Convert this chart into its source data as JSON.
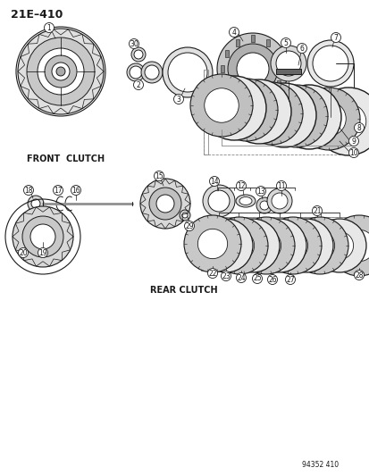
{
  "title": "21E–410",
  "diagram_id": "94352 410",
  "front_clutch_label": "FRONT  CLUTCH",
  "rear_clutch_label": "REAR CLUTCH",
  "background_color": "#ffffff",
  "line_color": "#1a1a1a",
  "figsize": [
    4.14,
    5.33
  ],
  "dpi": 100
}
